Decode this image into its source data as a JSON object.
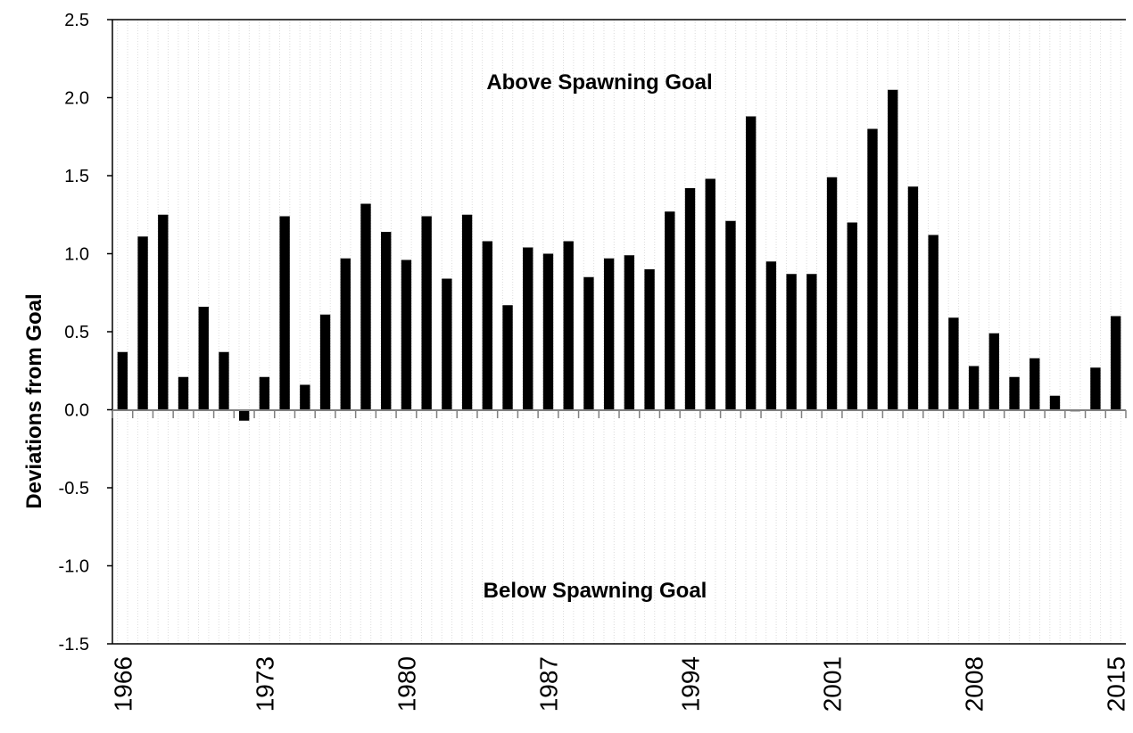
{
  "chart_data": {
    "type": "bar",
    "title": "",
    "xlabel": "",
    "ylabel": "Deviations from Goal",
    "ylim": [
      -1.5,
      2.5
    ],
    "yticks": [
      "2.5",
      "2.0",
      "1.5",
      "1.0",
      "0.5",
      "0.0",
      "-0.5",
      "-1.0",
      "-1.5"
    ],
    "xtick_labels": [
      "1966",
      "1973",
      "1980",
      "1987",
      "1994",
      "2001",
      "2008",
      "2015"
    ],
    "grid": "vertical minor gridlines",
    "annotations": {
      "above": "Above Spawning Goal",
      "below": "Below Spawning Goal"
    },
    "bar_color": "#000000",
    "categories": [
      1966,
      1967,
      1968,
      1969,
      1970,
      1971,
      1972,
      1973,
      1974,
      1975,
      1976,
      1977,
      1978,
      1979,
      1980,
      1981,
      1982,
      1983,
      1984,
      1985,
      1986,
      1987,
      1988,
      1989,
      1990,
      1991,
      1992,
      1993,
      1994,
      1995,
      1996,
      1997,
      1998,
      1999,
      2000,
      2001,
      2002,
      2003,
      2004,
      2005,
      2006,
      2007,
      2008,
      2009,
      2010,
      2011,
      2012,
      2013,
      2014,
      2015
    ],
    "values": [
      0.37,
      1.11,
      1.25,
      0.21,
      0.66,
      0.37,
      -0.07,
      0.21,
      1.24,
      0.16,
      0.61,
      0.97,
      1.32,
      1.14,
      0.96,
      1.24,
      0.84,
      1.25,
      1.08,
      0.67,
      1.04,
      1.0,
      1.08,
      0.85,
      0.97,
      0.99,
      0.9,
      1.27,
      1.42,
      1.48,
      1.21,
      1.88,
      0.95,
      0.87,
      0.87,
      1.49,
      1.2,
      1.8,
      2.05,
      1.43,
      1.12,
      0.59,
      0.28,
      0.49,
      0.21,
      0.33,
      0.09,
      -0.01,
      0.27,
      0.6
    ]
  }
}
